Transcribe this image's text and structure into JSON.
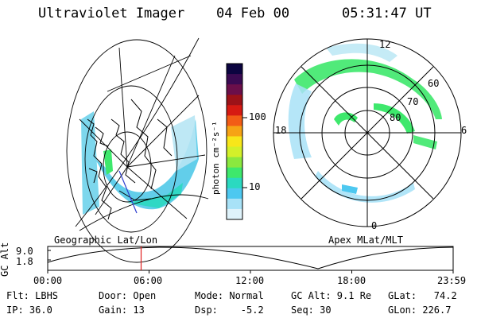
{
  "header": {
    "instrument": "Ultraviolet Imager",
    "date": "04 Feb 00",
    "time": "05:31:47 UT"
  },
  "colorbar": {
    "unit_label": "photon cm⁻²s⁻¹",
    "tick_labels": [
      "100",
      "10"
    ],
    "colors": [
      "#0b0440",
      "#3a0a52",
      "#6b0f4a",
      "#9c1218",
      "#d61a12",
      "#f25c16",
      "#f6a315",
      "#f8e61a",
      "#d3f02a",
      "#8be83f",
      "#3ee86c",
      "#2bd9c0",
      "#4dc8f0",
      "#a8e2f7",
      "#dff3fb"
    ]
  },
  "geo_panel": {
    "caption": "Geographic Lat/Lon"
  },
  "polar_panel": {
    "caption": "Apex MLat/MLT",
    "mlt_labels": [
      "12",
      "18",
      "6",
      "0"
    ],
    "lat_labels": [
      "60",
      "70",
      "80"
    ]
  },
  "timeline": {
    "y_label": "GC Alt",
    "y_ticks": [
      "9.0",
      "1.8"
    ],
    "x_ticks": [
      "00:00",
      "06:00",
      "12:00",
      "18:00",
      "23:59"
    ],
    "current_time_fraction": 0.2304
  },
  "info": {
    "flt": "Flt: LBHS",
    "ip": "IP: 36.0",
    "door": "Door: Open",
    "gain": "Gain: 13",
    "mode": "Mode: Normal",
    "dsp": "Dsp:    -5.2",
    "gc_alt": "GC Alt: 9.1 Re",
    "seq": "Seq: 30",
    "glat": "GLat:   74.2",
    "glon": "GLon: 226.7"
  }
}
